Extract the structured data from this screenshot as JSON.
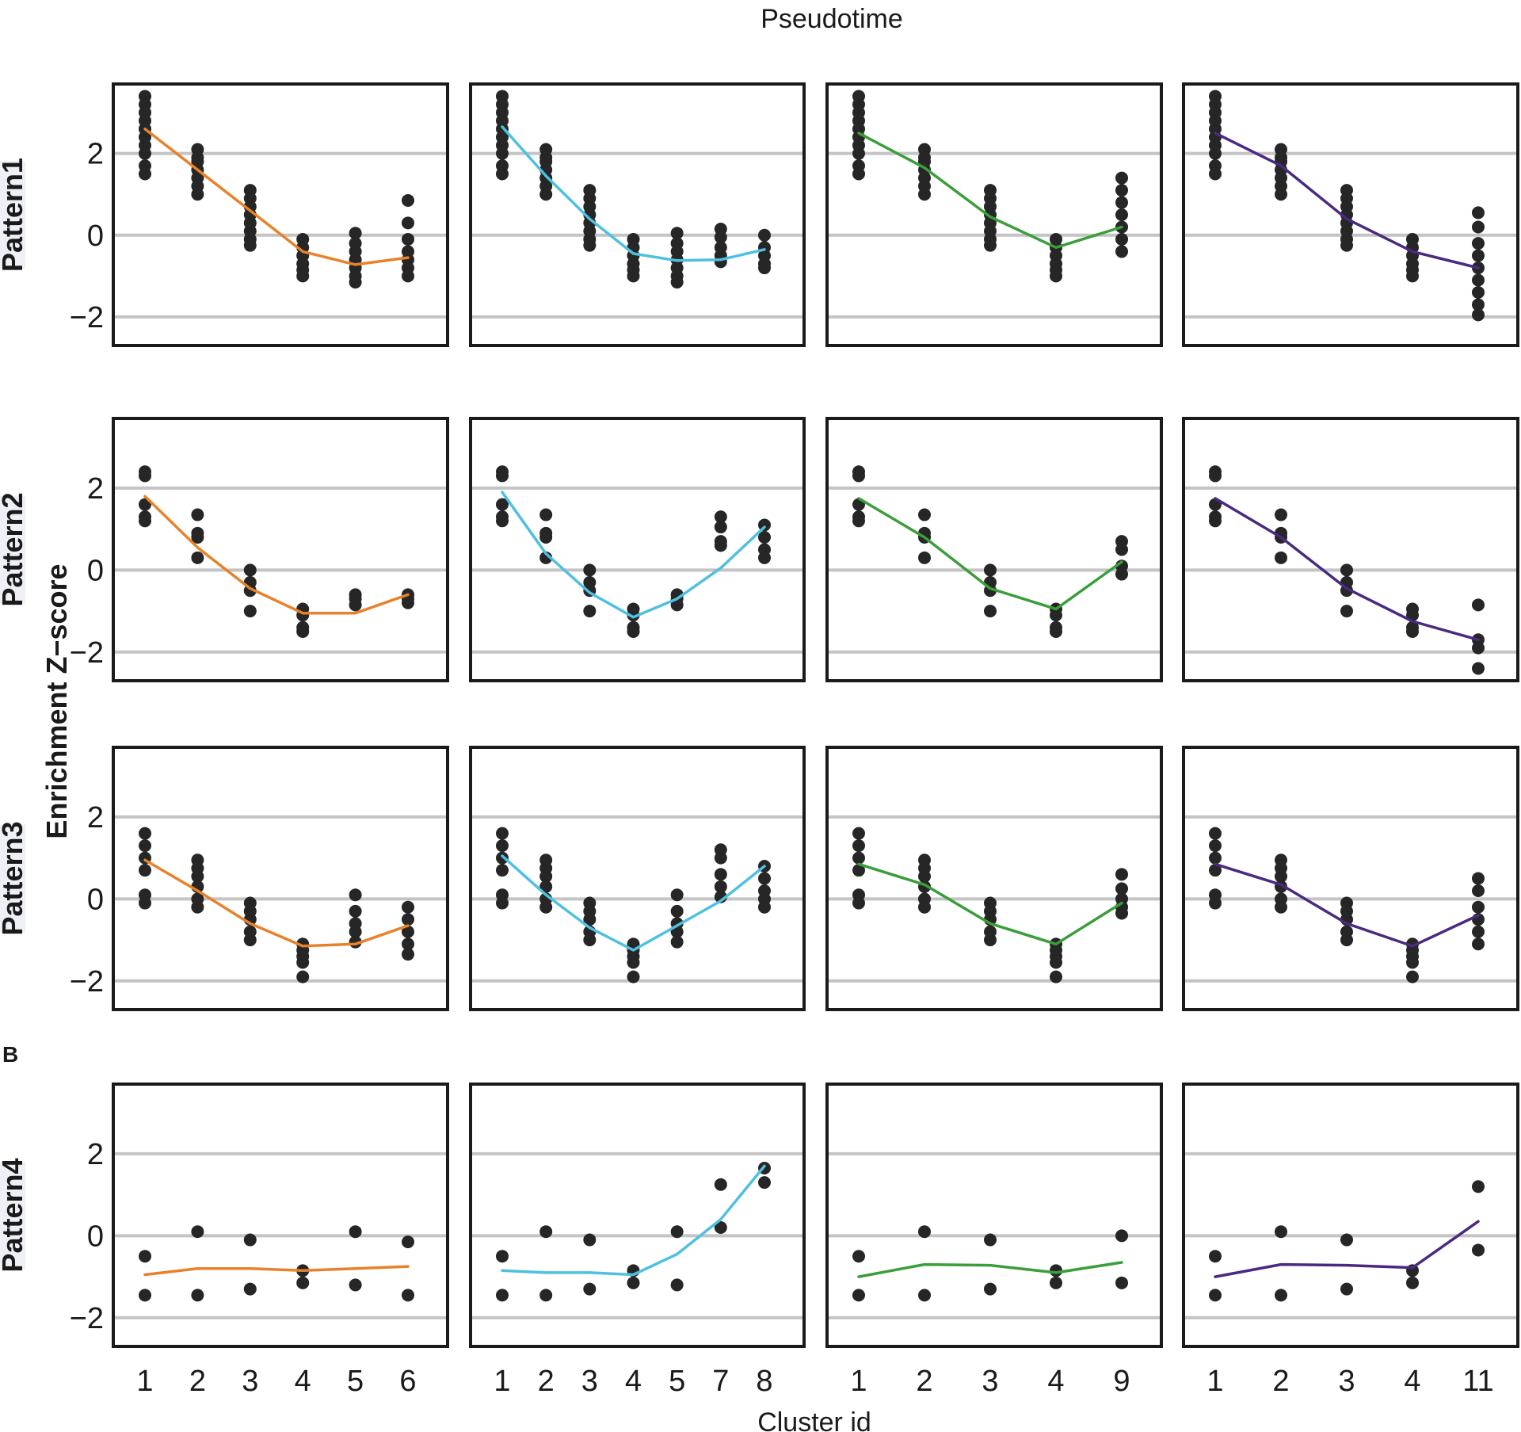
{
  "chart_data": {
    "type": "scatter",
    "title": "Pseudotime",
    "xlabel": "Cluster id",
    "ylabel": "Enrichment Z−score",
    "panel_label": "B",
    "ylim": [
      -2.7,
      3.7
    ],
    "yticks": [
      {
        "value": 2,
        "label": "2"
      },
      {
        "value": 0,
        "label": "0"
      },
      {
        "value": -2,
        "label": "−2"
      }
    ],
    "columns": [
      {
        "color": "#e8822a",
        "clusters": [
          "1",
          "2",
          "3",
          "4",
          "5",
          "6"
        ]
      },
      {
        "color": "#4fc0e0",
        "clusters": [
          "1",
          "2",
          "3",
          "4",
          "5",
          "7",
          "8"
        ]
      },
      {
        "color": "#3a9e3a",
        "clusters": [
          "1",
          "2",
          "3",
          "4",
          "9"
        ]
      },
      {
        "color": "#4a2a80",
        "clusters": [
          "1",
          "2",
          "3",
          "4",
          "11"
        ]
      }
    ],
    "rows": [
      {
        "pattern": "Pattern1",
        "points": {
          "1": [
            3.4,
            3.2,
            3.0,
            2.8,
            2.6,
            2.4,
            2.2,
            2.0,
            1.7,
            1.5
          ],
          "2": [
            2.1,
            1.9,
            1.8,
            1.6,
            1.4,
            1.2,
            1.0
          ],
          "3": [
            1.1,
            0.9,
            0.7,
            0.5,
            0.3,
            0.1,
            -0.1,
            -0.25
          ],
          "4": [
            -0.1,
            -0.3,
            -0.5,
            -0.7,
            -0.85,
            -1.0
          ],
          "5": [
            0.05,
            -0.2,
            -0.4,
            -0.6,
            -0.8,
            -1.0,
            -1.15
          ],
          "6": [
            0.85,
            0.3,
            -0.1,
            -0.4,
            -0.6,
            -0.8,
            -1.0
          ],
          "7": [
            0.15,
            -0.05,
            -0.3,
            -0.5,
            -0.65
          ],
          "8": [
            0.0,
            -0.3,
            -0.5,
            -0.7,
            -0.8
          ],
          "9": [
            1.4,
            1.1,
            0.8,
            0.5,
            0.2,
            -0.1,
            -0.4
          ],
          "11": [
            0.55,
            0.2,
            -0.2,
            -0.5,
            -0.8,
            -1.1,
            -1.4,
            -1.7,
            -1.95
          ]
        },
        "lines": [
          [
            2.6,
            1.6,
            0.6,
            -0.4,
            -0.72,
            -0.55
          ],
          [
            2.65,
            1.45,
            0.4,
            -0.45,
            -0.62,
            -0.6,
            -0.35
          ],
          [
            2.5,
            1.65,
            0.45,
            -0.3,
            0.2
          ],
          [
            2.5,
            1.7,
            0.4,
            -0.4,
            -0.8
          ]
        ]
      },
      {
        "pattern": "Pattern2",
        "points": {
          "1": [
            2.4,
            2.3,
            1.6,
            1.3,
            1.2
          ],
          "2": [
            1.35,
            0.9,
            0.8,
            0.3
          ],
          "3": [
            0.0,
            -0.3,
            -0.5,
            -1.0
          ],
          "4": [
            -0.95,
            -1.1,
            -1.4,
            -1.5
          ],
          "5": [
            -0.6,
            -0.7,
            -0.85
          ],
          "6": [
            -0.6,
            -0.7,
            -0.8
          ],
          "7": [
            1.3,
            1.05,
            0.7,
            0.6
          ],
          "8": [
            1.1,
            0.8,
            0.5,
            0.3
          ],
          "9": [
            0.7,
            0.5,
            0.1,
            -0.1
          ],
          "11": [
            -0.85,
            -1.7,
            -1.9,
            -2.4
          ]
        },
        "lines": [
          [
            1.8,
            0.55,
            -0.45,
            -1.05,
            -1.05,
            -0.6
          ],
          [
            1.9,
            0.4,
            -0.55,
            -1.15,
            -0.7,
            0.05,
            1.05
          ],
          [
            1.75,
            0.8,
            -0.45,
            -0.95,
            0.2
          ],
          [
            1.75,
            0.8,
            -0.45,
            -1.25,
            -1.7
          ]
        ]
      },
      {
        "pattern": "Pattern3",
        "points": {
          "1": [
            1.6,
            1.3,
            1.0,
            0.7,
            0.1,
            -0.1
          ],
          "2": [
            0.95,
            0.75,
            0.55,
            0.3,
            0.0,
            -0.2
          ],
          "3": [
            -0.1,
            -0.3,
            -0.5,
            -0.8,
            -1.0
          ],
          "4": [
            -1.1,
            -1.25,
            -1.4,
            -1.55,
            -1.9
          ],
          "5": [
            0.1,
            -0.3,
            -0.6,
            -0.8,
            -1.05
          ],
          "6": [
            -0.2,
            -0.5,
            -0.8,
            -1.1,
            -1.35
          ],
          "7": [
            1.2,
            1.0,
            0.6,
            0.3,
            0.05
          ],
          "8": [
            0.8,
            0.5,
            0.2,
            0.0,
            -0.2
          ],
          "9": [
            0.6,
            0.25,
            0.0,
            -0.2,
            -0.35
          ],
          "11": [
            0.5,
            0.2,
            -0.2,
            -0.5,
            -0.8,
            -1.1
          ]
        },
        "lines": [
          [
            0.95,
            0.2,
            -0.6,
            -1.15,
            -1.1,
            -0.65
          ],
          [
            1.05,
            0.1,
            -0.7,
            -1.25,
            -0.65,
            -0.05,
            0.8
          ],
          [
            0.85,
            0.35,
            -0.6,
            -1.1,
            -0.1
          ],
          [
            0.85,
            0.35,
            -0.6,
            -1.15,
            -0.4
          ]
        ]
      },
      {
        "pattern": "Pattern4",
        "points": {
          "1": [
            -0.5,
            -1.45
          ],
          "2": [
            0.1,
            -1.45
          ],
          "3": [
            -0.1,
            -1.3
          ],
          "4": [
            -0.85,
            -1.15
          ],
          "5": [
            0.1,
            -1.2
          ],
          "6": [
            -0.15,
            -1.45
          ],
          "7": [
            1.25,
            0.2
          ],
          "8": [
            1.65,
            1.3
          ],
          "9": [
            0.0,
            -1.15
          ],
          "11": [
            1.2,
            -0.35
          ]
        },
        "lines": [
          [
            -0.95,
            -0.8,
            -0.8,
            -0.85,
            -0.8,
            -0.75
          ],
          [
            -0.85,
            -0.9,
            -0.9,
            -0.95,
            -0.45,
            0.4,
            1.7
          ],
          [
            -1.0,
            -0.7,
            -0.72,
            -0.9,
            -0.65
          ],
          [
            -1.0,
            -0.7,
            -0.72,
            -0.78,
            0.35
          ]
        ]
      }
    ]
  }
}
